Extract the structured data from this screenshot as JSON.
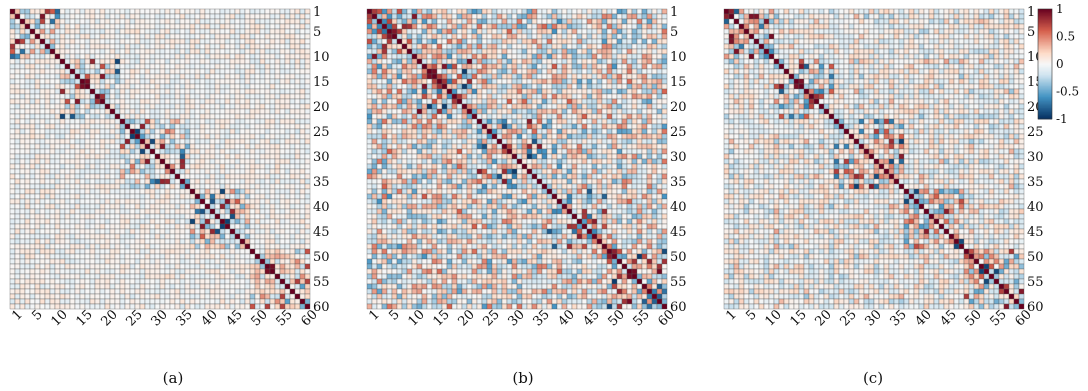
{
  "chart_data": [
    {
      "type": "heatmap",
      "panel_label": "(a)",
      "matrix_size": 60,
      "x_tick_labels": [
        "1",
        "5",
        "10",
        "15",
        "20",
        "25",
        "30",
        "35",
        "40",
        "45",
        "50",
        "55",
        "60"
      ],
      "y_tick_labels": [
        "1",
        "5",
        "10",
        "15",
        "20",
        "25",
        "30",
        "35",
        "40",
        "45",
        "50",
        "55",
        "60"
      ],
      "tick_values": [
        1,
        5,
        10,
        15,
        20,
        25,
        30,
        35,
        40,
        45,
        50,
        55,
        60
      ],
      "value_range": [
        -1,
        1
      ],
      "diagonal_value": 1,
      "blocks": [
        [
          1,
          10
        ],
        [
          11,
          22
        ],
        [
          23,
          36
        ],
        [
          37,
          48
        ],
        [
          49,
          60
        ]
      ],
      "within_block_strength": 0.55,
      "between_block_strength": 0.18
    },
    {
      "type": "heatmap",
      "panel_label": "(b)",
      "matrix_size": 60,
      "x_tick_labels": [
        "1",
        "5",
        "10",
        "15",
        "20",
        "25",
        "30",
        "35",
        "40",
        "45",
        "50",
        "55",
        "60"
      ],
      "y_tick_labels": [
        "1",
        "5",
        "10",
        "15",
        "20",
        "25",
        "30",
        "35",
        "40",
        "45",
        "50",
        "55",
        "60"
      ],
      "tick_values": [
        1,
        5,
        10,
        15,
        20,
        25,
        30,
        35,
        40,
        45,
        50,
        55,
        60
      ],
      "value_range": [
        -1,
        1
      ],
      "diagonal_value": 1,
      "blocks": [
        [
          1,
          10
        ],
        [
          11,
          22
        ],
        [
          23,
          36
        ],
        [
          37,
          48
        ],
        [
          49,
          60
        ]
      ],
      "within_block_strength": 0.75,
      "between_block_strength": 0.6
    },
    {
      "type": "heatmap",
      "panel_label": "(c)",
      "matrix_size": 60,
      "x_tick_labels": [
        "1",
        "5",
        "10",
        "15",
        "20",
        "25",
        "30",
        "35",
        "40",
        "45",
        "50",
        "55",
        "60"
      ],
      "y_tick_labels": [
        "1",
        "5",
        "10",
        "15",
        "20",
        "25",
        "30",
        "35",
        "40",
        "45",
        "50",
        "55",
        "60"
      ],
      "tick_values": [
        1,
        5,
        10,
        15,
        20,
        25,
        30,
        35,
        40,
        45,
        50,
        55,
        60
      ],
      "value_range": [
        -1,
        1
      ],
      "diagonal_value": 1,
      "blocks": [
        [
          1,
          10
        ],
        [
          11,
          22
        ],
        [
          23,
          36
        ],
        [
          37,
          48
        ],
        [
          49,
          60
        ]
      ],
      "within_block_strength": 0.7,
      "between_block_strength": 0.35,
      "colorbar": {
        "ticks": [
          1,
          0.5,
          0,
          -0.5,
          -1
        ],
        "tick_labels": [
          "1",
          "0.5",
          "0",
          "-0.5",
          "-1"
        ]
      }
    }
  ],
  "colors": {
    "neg_strong": "#053061",
    "neg_mid": "#4393c3",
    "neg_light": "#d1e5f0",
    "zero": "#f7f7f7",
    "pos_light": "#fddbc7",
    "pos_mid": "#d6604d",
    "pos_strong": "#67001f"
  }
}
